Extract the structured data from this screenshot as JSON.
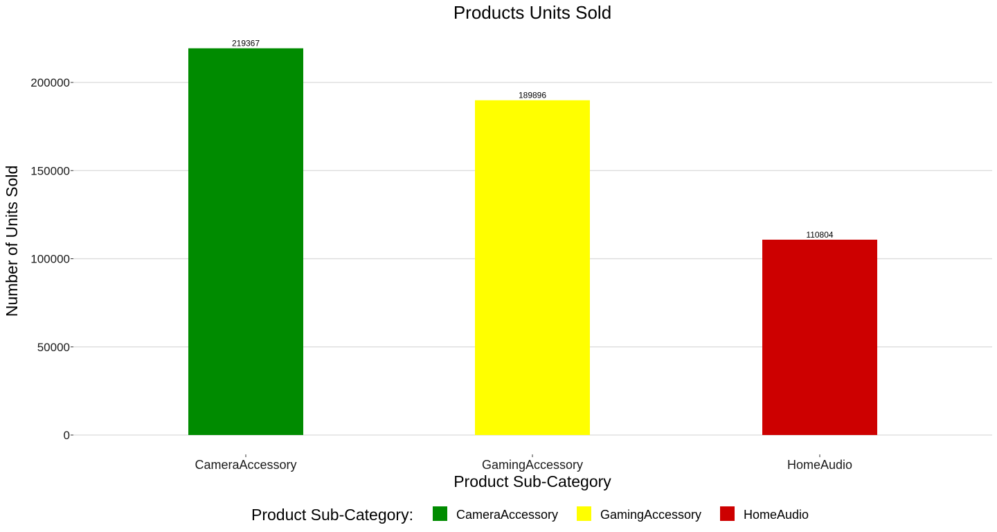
{
  "chart_data": {
    "type": "bar",
    "title": "Products Units Sold",
    "xlabel": "Product Sub-Category",
    "ylabel": "Number of Units Sold",
    "categories": [
      "CameraAccessory",
      "GamingAccessory",
      "HomeAudio"
    ],
    "values": [
      219367,
      189896,
      110804
    ],
    "data_labels": [
      "219367",
      "189896",
      "110804"
    ],
    "colors": [
      "#008B00",
      "#FFFF00",
      "#CD0000"
    ],
    "yticks": [
      0,
      50000,
      100000,
      150000,
      200000
    ],
    "ytick_labels": [
      "0",
      "50000",
      "100000",
      "150000",
      "200000"
    ],
    "ylim": [
      0,
      219367
    ],
    "grid": "horizontal",
    "gridline_color": "#d9d9d9",
    "legend": {
      "title": "Product Sub-Category:",
      "position": "bottom",
      "items": [
        "CameraAccessory",
        "GamingAccessory",
        "HomeAudio"
      ]
    }
  }
}
